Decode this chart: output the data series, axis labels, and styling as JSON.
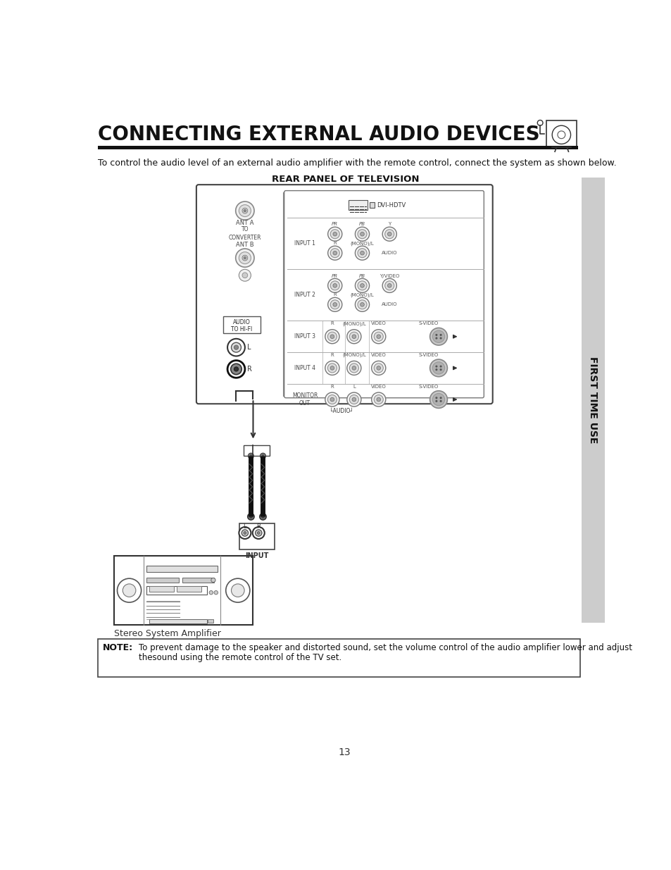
{
  "title": "CONNECTING EXTERNAL AUDIO DEVICES",
  "subtitle": "To control the audio level of an external audio amplifier with the remote control, connect the system as shown below.",
  "diagram_title": "REAR PANEL OF TELEVISION",
  "sidebar_text": "FIRST TIME USE",
  "page_number": "13",
  "note_label": "NOTE:",
  "note_text": "To prevent damage to the speaker and distorted sound, set the volume control of the audio amplifier lower and adjust\nthesound using the remote control of the TV set.",
  "stereo_label": "Stereo System Amplifier",
  "bg_color": "#ffffff",
  "sidebar_bg": "#cccccc",
  "header_bar_color": "#111111",
  "note_box_border": "#444444"
}
